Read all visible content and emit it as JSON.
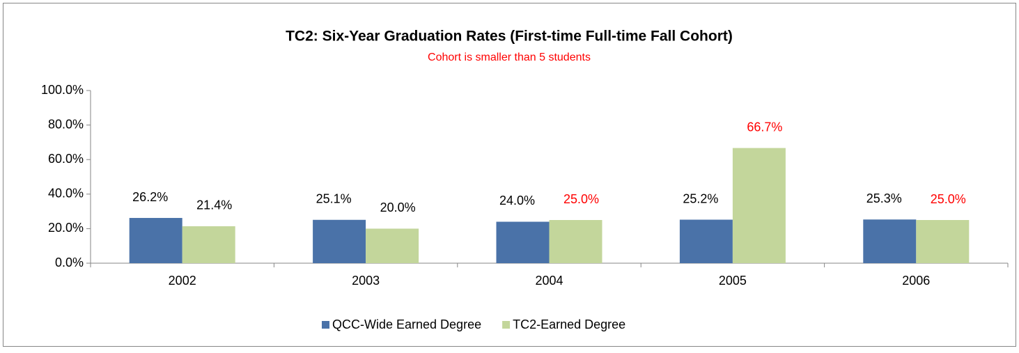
{
  "chart_data": {
    "type": "bar",
    "title": "TC2: Six-Year Graduation Rates (First-time Full-time Fall Cohort)",
    "subtitle": "Cohort is smaller than 5 students",
    "subtitle_color": "#ff0000",
    "categories": [
      "2002",
      "2003",
      "2004",
      "2005",
      "2006"
    ],
    "series": [
      {
        "name": "QCC-Wide Earned Degree",
        "color": "#4a72a8",
        "values": [
          26.2,
          25.1,
          24.0,
          25.2,
          25.3
        ],
        "value_labels": [
          "26.2%",
          "25.1%",
          "24.0%",
          "25.2%",
          "25.3%"
        ],
        "label_colors": [
          "#000000",
          "#000000",
          "#000000",
          "#000000",
          "#000000"
        ]
      },
      {
        "name": "TC2-Earned Degree",
        "color": "#c3d69b",
        "values": [
          21.4,
          20.0,
          25.0,
          66.7,
          25.0
        ],
        "value_labels": [
          "21.4%",
          "20.0%",
          "25.0%",
          "66.7%",
          "25.0%"
        ],
        "label_colors": [
          "#000000",
          "#000000",
          "#ff0000",
          "#ff0000",
          "#ff0000"
        ]
      }
    ],
    "ylim": [
      0,
      100
    ],
    "yticks": [
      {
        "value": 0,
        "label": "0.0%"
      },
      {
        "value": 20,
        "label": "20.0%"
      },
      {
        "value": 40,
        "label": "40.0%"
      },
      {
        "value": 60,
        "label": "60.0%"
      },
      {
        "value": 80,
        "label": "80.0%"
      },
      {
        "value": 100,
        "label": "100.0%"
      }
    ],
    "grid": false,
    "legend": "bottom"
  }
}
